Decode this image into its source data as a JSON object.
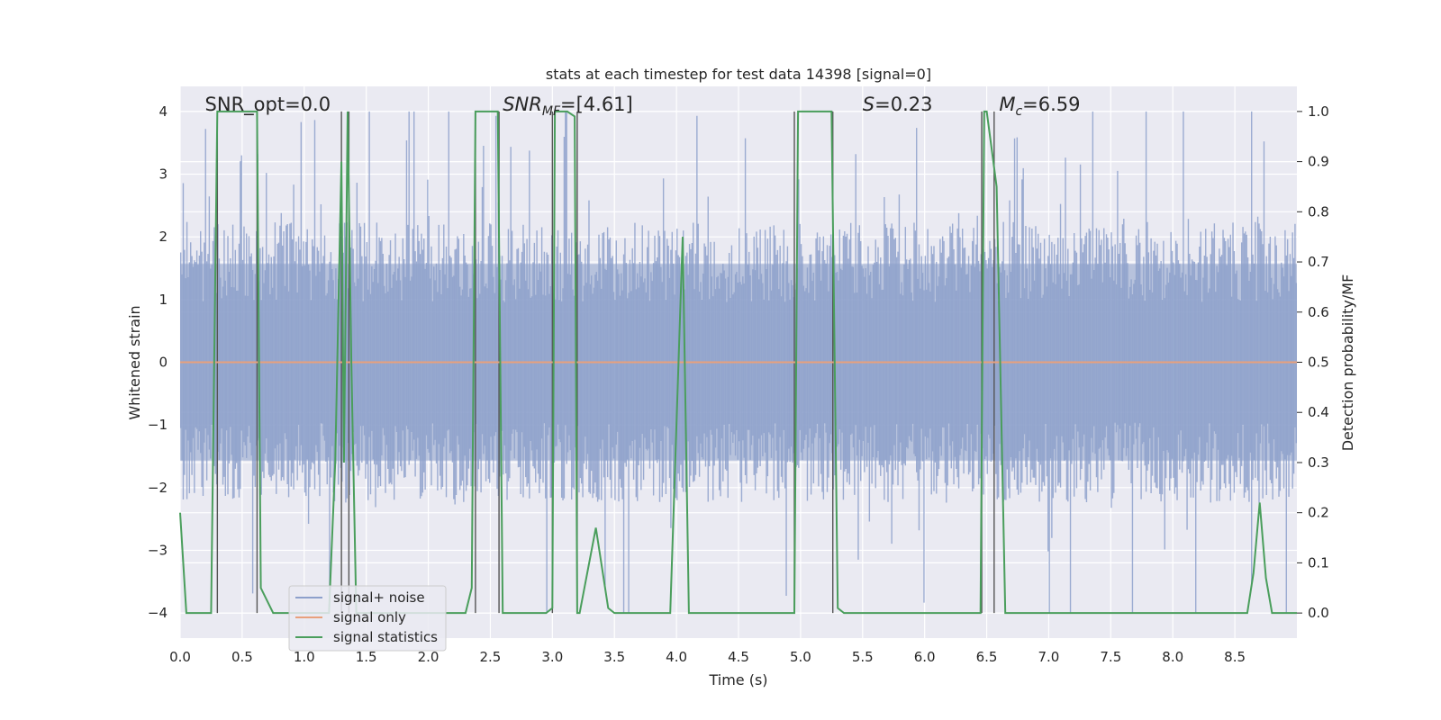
{
  "chart_data": {
    "type": "line",
    "title": "stats at each timestep for test data 14398 [signal=0]",
    "xlabel": "Time (s)",
    "ylabel": "Whitened strain",
    "ylabel_right": "Detection probability/MF",
    "xlim": [
      0,
      9
    ],
    "ylim": [
      -4.4,
      4.4
    ],
    "ylim_right": [
      -0.05,
      1.05
    ],
    "x_ticks": [
      "0.0",
      "0.5",
      "1.0",
      "1.5",
      "2.0",
      "2.5",
      "3.0",
      "3.5",
      "4.0",
      "4.5",
      "5.0",
      "5.5",
      "6.0",
      "6.5",
      "7.0",
      "7.5",
      "8.0",
      "8.5"
    ],
    "y_ticks": [
      "4",
      "3",
      "2",
      "1",
      "0",
      "−1",
      "−2",
      "−3",
      "−4"
    ],
    "y_ticks_right": [
      "1.0",
      "0.9",
      "0.8",
      "0.7",
      "0.6",
      "0.5",
      "0.4",
      "0.3",
      "0.2",
      "0.1",
      "0.0"
    ],
    "grid": true,
    "legend": {
      "placement": "lower-left",
      "entries": [
        {
          "label": "signal+ noise",
          "color": "#8da0cb"
        },
        {
          "label": "signal only",
          "color": "#e8a07c"
        },
        {
          "label": "signal statistics",
          "color": "#4a9e5c"
        }
      ]
    },
    "annotations": [
      {
        "text": "SNR_opt=0.0",
        "x": 0.2
      },
      {
        "text": "SNR",
        "sub": "MF",
        "rest": "=[4.61]",
        "x": 2.6
      },
      {
        "text": "S",
        "rest": "=0.23",
        "x": 5.5
      },
      {
        "text": "M",
        "sub": "c",
        "rest": "=6.59",
        "x": 6.6
      }
    ],
    "noise_band": {
      "typical_amplitude": 1.6,
      "max_amplitude": 4.0,
      "samples": 900
    },
    "signal_only": {
      "value": 0
    },
    "statistics_series": {
      "x": [
        0.0,
        0.05,
        0.25,
        0.3,
        0.37,
        0.6,
        0.62,
        0.65,
        0.75,
        0.8,
        1.2,
        1.25,
        1.3,
        1.32,
        1.35,
        1.38,
        1.42,
        1.45,
        2.3,
        2.35,
        2.38,
        2.42,
        2.5,
        2.56,
        2.6,
        2.7,
        2.95,
        3.0,
        3.02,
        3.08,
        3.12,
        3.18,
        3.2,
        3.22,
        3.35,
        3.45,
        3.5,
        3.6,
        3.75,
        3.8,
        3.95,
        4.05,
        4.1,
        4.2,
        4.9,
        4.95,
        4.98,
        5.0,
        5.15,
        5.2,
        5.25,
        5.3,
        5.35,
        5.4,
        5.5,
        6.4,
        6.45,
        6.48,
        6.5,
        6.58,
        6.65,
        6.7,
        6.9,
        7.3,
        8.5,
        8.6,
        8.65,
        8.7,
        8.75,
        8.8,
        9.0
      ],
      "y": [
        0.2,
        0.0,
        0.0,
        1.0,
        1.0,
        1.0,
        1.0,
        0.05,
        0.0,
        0.0,
        0.0,
        0.3,
        0.9,
        0.3,
        1.0,
        0.5,
        0.0,
        0.0,
        0.0,
        0.05,
        1.0,
        1.0,
        1.0,
        1.0,
        0.0,
        0.0,
        0.0,
        0.01,
        1.0,
        1.0,
        1.0,
        0.99,
        0.0,
        0.0,
        0.17,
        0.01,
        0.0,
        0.0,
        0.0,
        0.0,
        0.0,
        0.75,
        0.0,
        0.0,
        0.0,
        0.0,
        1.0,
        1.0,
        1.0,
        1.0,
        1.0,
        0.01,
        0.0,
        0.0,
        0.0,
        0.0,
        0.0,
        1.0,
        1.0,
        0.85,
        0.0,
        0.0,
        0.0,
        0.0,
        0.0,
        0.0,
        0.08,
        0.22,
        0.07,
        0.0,
        0.0
      ]
    },
    "vertical_markers": [
      0.3,
      0.62,
      1.3,
      1.36,
      2.38,
      2.57,
      3.0,
      3.2,
      4.95,
      5.26,
      6.46,
      6.56
    ]
  }
}
